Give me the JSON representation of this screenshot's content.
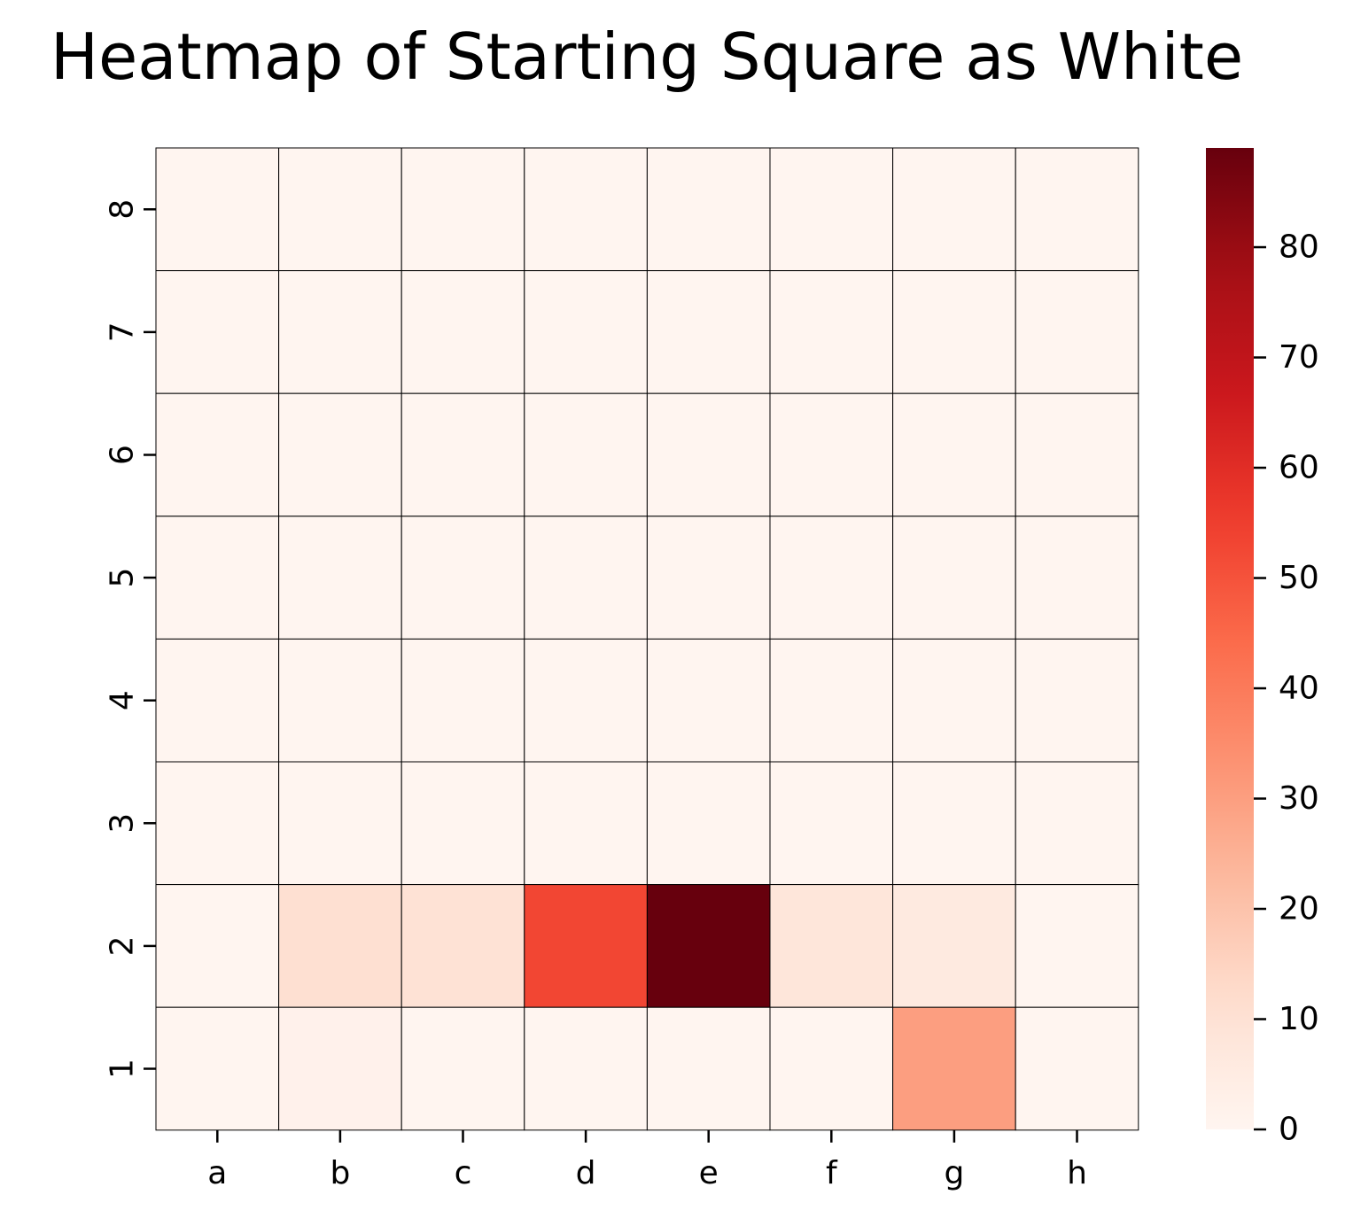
{
  "chart_data": {
    "type": "heatmap",
    "title": "Heatmap of Starting Square as White",
    "xlabel": "",
    "ylabel": "",
    "x_categories": [
      "a",
      "b",
      "c",
      "d",
      "e",
      "f",
      "g",
      "h"
    ],
    "y_categories": [
      "8",
      "7",
      "6",
      "5",
      "4",
      "3",
      "2",
      "1"
    ],
    "values": [
      [
        0,
        0,
        0,
        0,
        0,
        0,
        0,
        0
      ],
      [
        0,
        0,
        0,
        0,
        0,
        0,
        0,
        0
      ],
      [
        0,
        0,
        0,
        0,
        0,
        0,
        0,
        0
      ],
      [
        0,
        0,
        0,
        0,
        0,
        0,
        0,
        0
      ],
      [
        0,
        0,
        0,
        0,
        0,
        0,
        0,
        0
      ],
      [
        0,
        0,
        0,
        0,
        0,
        0,
        0,
        0
      ],
      [
        0,
        11,
        10,
        53,
        89,
        8,
        6,
        0
      ],
      [
        0,
        2,
        0,
        0,
        0,
        0,
        30,
        0
      ]
    ],
    "colorbar": {
      "colormap": "Reds",
      "vmin": 0,
      "vmax": 89,
      "ticks": [
        0,
        10,
        20,
        30,
        40,
        50,
        60,
        70,
        80
      ]
    },
    "grid": true,
    "cell_border_color": "#000000"
  }
}
